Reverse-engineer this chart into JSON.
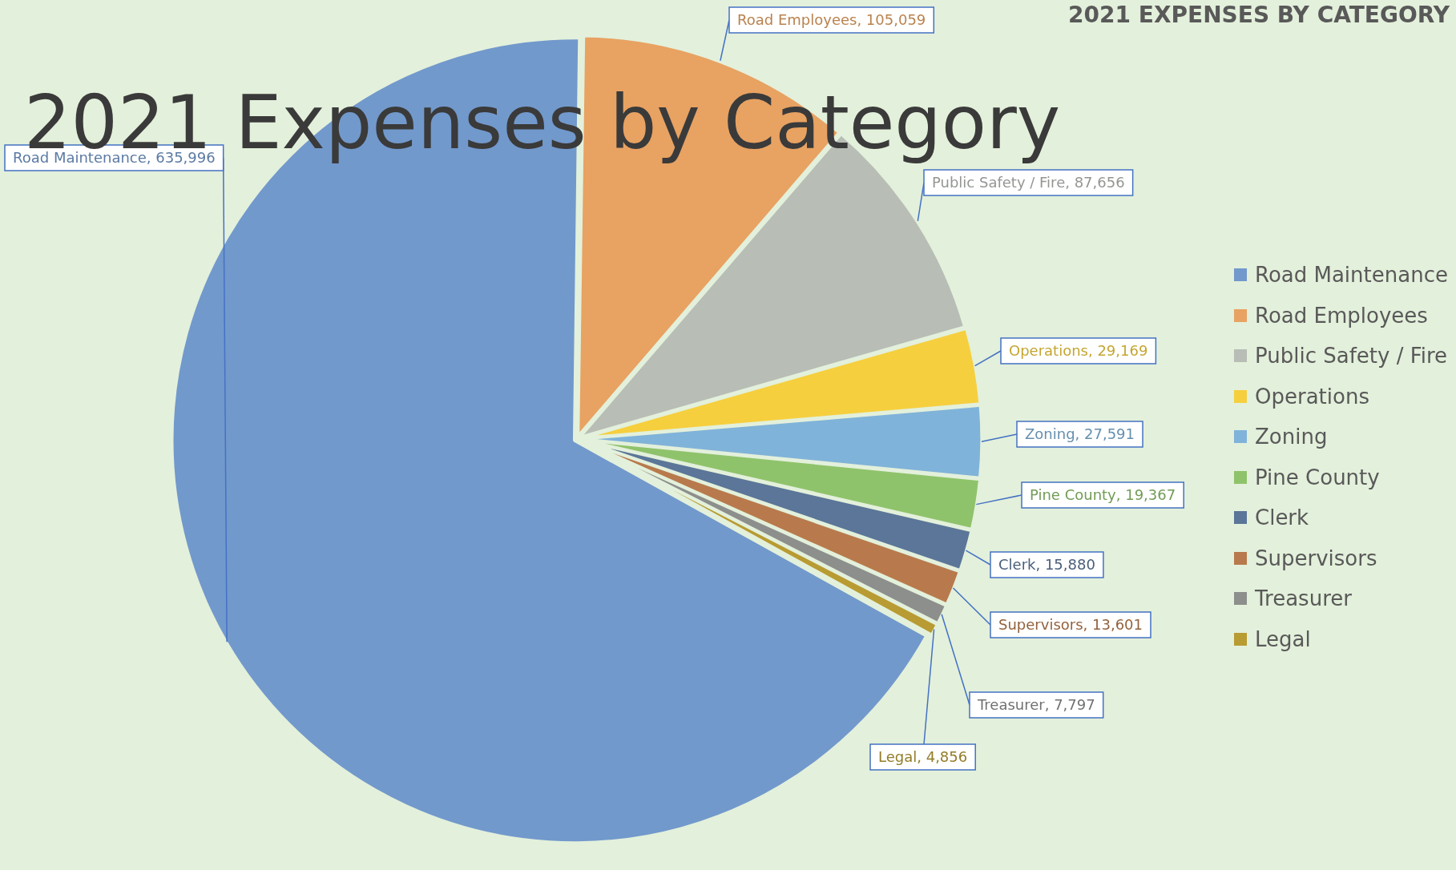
{
  "chart_data": {
    "type": "pie",
    "title": "2021 Expenses by Category",
    "subtitle": "2021 EXPENSES BY CATEGORY",
    "categories": [
      "Road Maintenance",
      "Road Employees",
      "Public Safety / Fire",
      "Operations",
      "Zoning",
      "Pine County",
      "Clerk",
      "Supervisors",
      "Treasurer",
      "Legal"
    ],
    "values": [
      635996,
      105059,
      87656,
      29169,
      27591,
      19367,
      15880,
      13601,
      7797,
      4856
    ],
    "colors": [
      "#7299cc",
      "#e8a262",
      "#b8bdb5",
      "#f6cf3e",
      "#80b3d9",
      "#8fc36b",
      "#5b7698",
      "#b87a4c",
      "#8d8f8c",
      "#b89b32"
    ],
    "value_labels": [
      "Road Maintenance, 635,996",
      "Road Employees, 105,059",
      "Public Safety / Fire, 87,656",
      "Operations, 29,169",
      "Zoning, 27,591",
      "Pine County, 19,367",
      "Clerk, 15,880",
      "Supervisors, 13,601",
      "Treasurer, 7,797",
      "Legal, 4,856"
    ],
    "legend": "right"
  }
}
